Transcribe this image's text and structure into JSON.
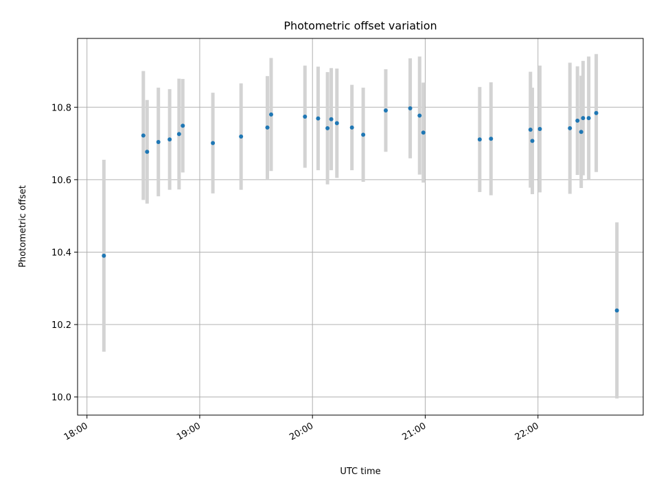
{
  "chart_data": {
    "type": "scatter",
    "title": "Photometric offset variation",
    "xlabel": "UTC time",
    "ylabel": "Photometric offset",
    "x_ticks": [
      "18:00",
      "19:00",
      "20:00",
      "21:00",
      "22:00"
    ],
    "y_ticks": [
      "10.0",
      "10.2",
      "10.4",
      "10.6",
      "10.8"
    ],
    "xlim": [
      "17:55",
      "22:56"
    ],
    "ylim": [
      9.95,
      10.99
    ],
    "grid": true,
    "point_color": "#1f77b4",
    "errorbar_color": "#d3d3d3",
    "points": [
      {
        "x": "18:09",
        "y": 10.39,
        "err": 0.265
      },
      {
        "x": "18:30",
        "y": 10.722,
        "err": 0.178
      },
      {
        "x": "18:32",
        "y": 10.677,
        "err": 0.143
      },
      {
        "x": "18:38",
        "y": 10.704,
        "err": 0.15
      },
      {
        "x": "18:44",
        "y": 10.711,
        "err": 0.139
      },
      {
        "x": "18:49",
        "y": 10.726,
        "err": 0.153
      },
      {
        "x": "18:51",
        "y": 10.749,
        "err": 0.129
      },
      {
        "x": "19:07",
        "y": 10.701,
        "err": 0.139
      },
      {
        "x": "19:22",
        "y": 10.719,
        "err": 0.147
      },
      {
        "x": "19:36",
        "y": 10.744,
        "err": 0.142
      },
      {
        "x": "19:38",
        "y": 10.78,
        "err": 0.156
      },
      {
        "x": "19:56",
        "y": 10.774,
        "err": 0.141
      },
      {
        "x": "20:03",
        "y": 10.769,
        "err": 0.143
      },
      {
        "x": "20:08",
        "y": 10.742,
        "err": 0.155
      },
      {
        "x": "20:10",
        "y": 10.767,
        "err": 0.141
      },
      {
        "x": "20:13",
        "y": 10.756,
        "err": 0.151
      },
      {
        "x": "20:21",
        "y": 10.744,
        "err": 0.118
      },
      {
        "x": "20:27",
        "y": 10.724,
        "err": 0.13
      },
      {
        "x": "20:39",
        "y": 10.791,
        "err": 0.114
      },
      {
        "x": "20:52",
        "y": 10.797,
        "err": 0.138
      },
      {
        "x": "20:57",
        "y": 10.777,
        "err": 0.163
      },
      {
        "x": "20:59",
        "y": 10.73,
        "err": 0.138
      },
      {
        "x": "21:29",
        "y": 10.711,
        "err": 0.145
      },
      {
        "x": "21:35",
        "y": 10.713,
        "err": 0.156
      },
      {
        "x": "21:56",
        "y": 10.738,
        "err": 0.16
      },
      {
        "x": "21:57",
        "y": 10.707,
        "err": 0.147
      },
      {
        "x": "22:01",
        "y": 10.74,
        "err": 0.175
      },
      {
        "x": "22:17",
        "y": 10.742,
        "err": 0.181
      },
      {
        "x": "22:21",
        "y": 10.763,
        "err": 0.15
      },
      {
        "x": "22:23",
        "y": 10.732,
        "err": 0.155
      },
      {
        "x": "22:24",
        "y": 10.77,
        "err": 0.158
      },
      {
        "x": "22:27",
        "y": 10.77,
        "err": 0.17
      },
      {
        "x": "22:31",
        "y": 10.784,
        "err": 0.163
      },
      {
        "x": "22:42",
        "y": 10.239,
        "err": 0.243
      }
    ]
  }
}
